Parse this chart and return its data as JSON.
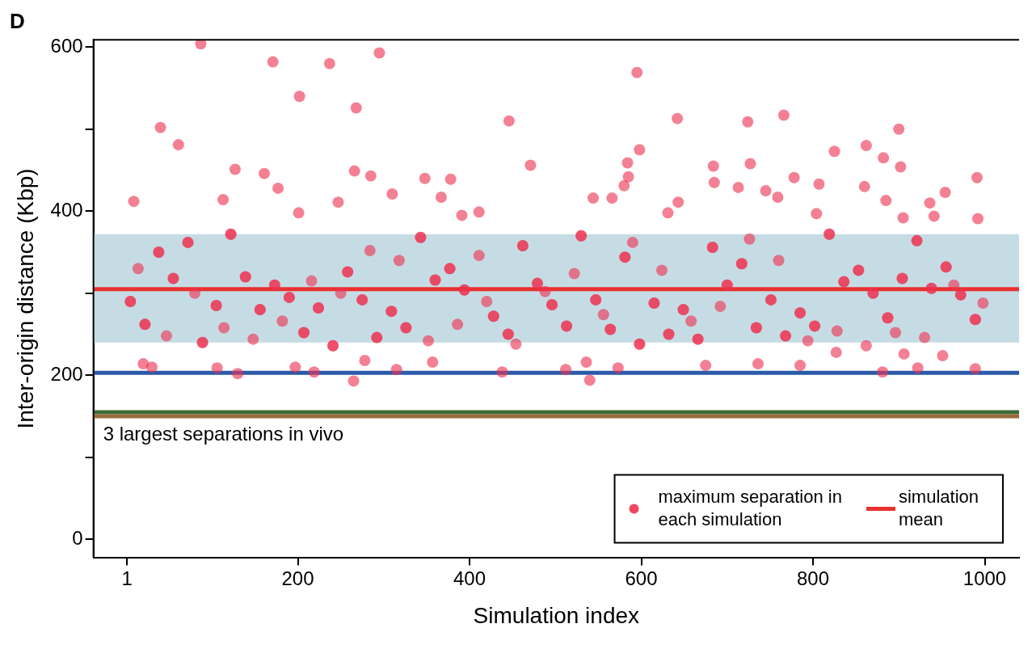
{
  "chart_data": {
    "type": "scatter",
    "title": "D",
    "xlabel": "Simulation index",
    "ylabel": "Inter-origin distance (Kbp)",
    "xlim": [
      -38,
      1040
    ],
    "ylim": [
      -22,
      609
    ],
    "xticks": [
      1,
      200,
      400,
      600,
      800,
      1000
    ],
    "yticks": [
      0,
      {
        "value": 100,
        "label": null
      },
      200,
      {
        "value": 300,
        "label": null
      },
      400,
      {
        "value": 500,
        "label": null
      },
      600
    ],
    "marker": "circle",
    "legend": "bottom right",
    "series": [
      {
        "name": "maximum separation in each simulation",
        "color": "#ee3250",
        "x": [
          5,
          9,
          20,
          22,
          30,
          38,
          40,
          55,
          61,
          72,
          87,
          89,
          105,
          106,
          113,
          122,
          127,
          130,
          139,
          156,
          161,
          171,
          173,
          177,
          190,
          197,
          201,
          202,
          207,
          219,
          224,
          237,
          241,
          247,
          258,
          265,
          266,
          268,
          275,
          278,
          285,
          292,
          295,
          309,
          310,
          315,
          326,
          343,
          348,
          357,
          360,
          367,
          377,
          378,
          391,
          394,
          411,
          428,
          438,
          445,
          446,
          462,
          471,
          479,
          496,
          512,
          513,
          530,
          536,
          540,
          544,
          547,
          564,
          566,
          573,
          580,
          581,
          584,
          585,
          595,
          598,
          598,
          615,
          631,
          632,
          642,
          643,
          649,
          666,
          675,
          683,
          684,
          685,
          700,
          713,
          717,
          724,
          727,
          734,
          736,
          745,
          751,
          759,
          766,
          768,
          778,
          785,
          785,
          802,
          804,
          807,
          819,
          825,
          827,
          836,
          853,
          860,
          862,
          870,
          881,
          882,
          885,
          887,
          900,
          902,
          904,
          905,
          906,
          921,
          922,
          936,
          938,
          941,
          951,
          954,
          955,
          972,
          989,
          989,
          991,
          992,
          5,
          22,
          38,
          55,
          72,
          89,
          105,
          122,
          139,
          156,
          173,
          190,
          207,
          224,
          241,
          258,
          275,
          292,
          309,
          326,
          343,
          360,
          377,
          394,
          411,
          428,
          445,
          462,
          479,
          496,
          513,
          530,
          547,
          564,
          581,
          598,
          615,
          632,
          649,
          666,
          683,
          700,
          717,
          734,
          751,
          768,
          785,
          802,
          819,
          836,
          853,
          870,
          887,
          904,
          921,
          938,
          955,
          972,
          989,
          14,
          47,
          80,
          114,
          148,
          182,
          216,
          250,
          284,
          318,
          352,
          386,
          420,
          454,
          488,
          522,
          556,
          590,
          624,
          658,
          692,
          726,
          760,
          794,
          828,
          862,
          896,
          930,
          964,
          998
        ],
        "values": [
          290,
          412,
          214,
          262,
          210,
          350,
          502,
          318,
          481,
          362,
          604,
          240,
          285,
          209,
          414,
          372,
          451,
          202,
          320,
          280,
          446,
          582,
          310,
          428,
          295,
          210,
          398,
          540,
          252,
          204,
          282,
          580,
          236,
          411,
          326,
          193,
          449,
          526,
          292,
          218,
          443,
          246,
          593,
          278,
          421,
          207,
          258,
          368,
          440,
          216,
          316,
          417,
          330,
          439,
          395,
          304,
          399,
          272,
          204,
          250,
          510,
          358,
          456,
          312,
          286,
          207,
          260,
          370,
          216,
          194,
          416,
          292,
          256,
          416,
          209,
          431,
          344,
          459,
          442,
          569,
          475,
          238,
          288,
          398,
          250,
          513,
          411,
          280,
          244,
          212,
          356,
          455,
          435,
          310,
          429,
          336,
          509,
          458,
          258,
          214,
          425,
          292,
          417,
          517,
          248,
          441,
          276,
          212,
          260,
          397,
          433,
          372,
          473,
          228,
          314,
          328,
          430,
          480,
          300,
          204,
          465,
          413,
          270,
          500,
          454,
          318,
          392,
          226,
          364,
          209,
          410,
          306,
          394,
          224,
          423,
          332,
          298,
          268,
          208,
          441,
          391,
          290,
          262,
          350,
          318,
          362,
          240,
          285,
          372,
          320,
          280,
          310,
          295,
          252,
          282,
          236,
          326,
          292,
          246,
          278,
          258,
          368,
          316,
          330,
          304,
          346,
          272,
          250,
          358,
          312,
          286,
          260,
          370,
          292,
          256,
          344,
          238,
          288,
          250,
          280,
          244,
          356,
          310,
          336,
          258,
          292,
          248,
          276,
          260,
          372,
          314,
          328,
          300,
          270,
          318,
          364,
          306,
          332,
          298,
          268,
          330,
          248,
          300,
          258,
          244,
          266,
          315,
          300,
          352,
          340,
          242,
          262,
          290,
          238,
          302,
          324,
          274,
          362,
          328,
          266,
          284,
          366,
          340,
          242,
          254,
          236,
          252,
          246,
          310,
          288
        ]
      }
    ],
    "ref_lines": [
      {
        "axis": "y",
        "value": 305,
        "label": "simulation mean",
        "color": "#e8312f"
      },
      {
        "axis": "y",
        "value": 203,
        "color": "#2a5aa8"
      },
      {
        "axis": "y",
        "value": 155,
        "color": "#3b6b34"
      },
      {
        "axis": "y",
        "value": 150,
        "color": "#9a6b3c"
      }
    ],
    "bands": [
      {
        "axis": "y",
        "from": 240,
        "to": 372,
        "color": "#c6dce5"
      }
    ],
    "annotations": [
      "3 largest separations in vivo"
    ]
  }
}
